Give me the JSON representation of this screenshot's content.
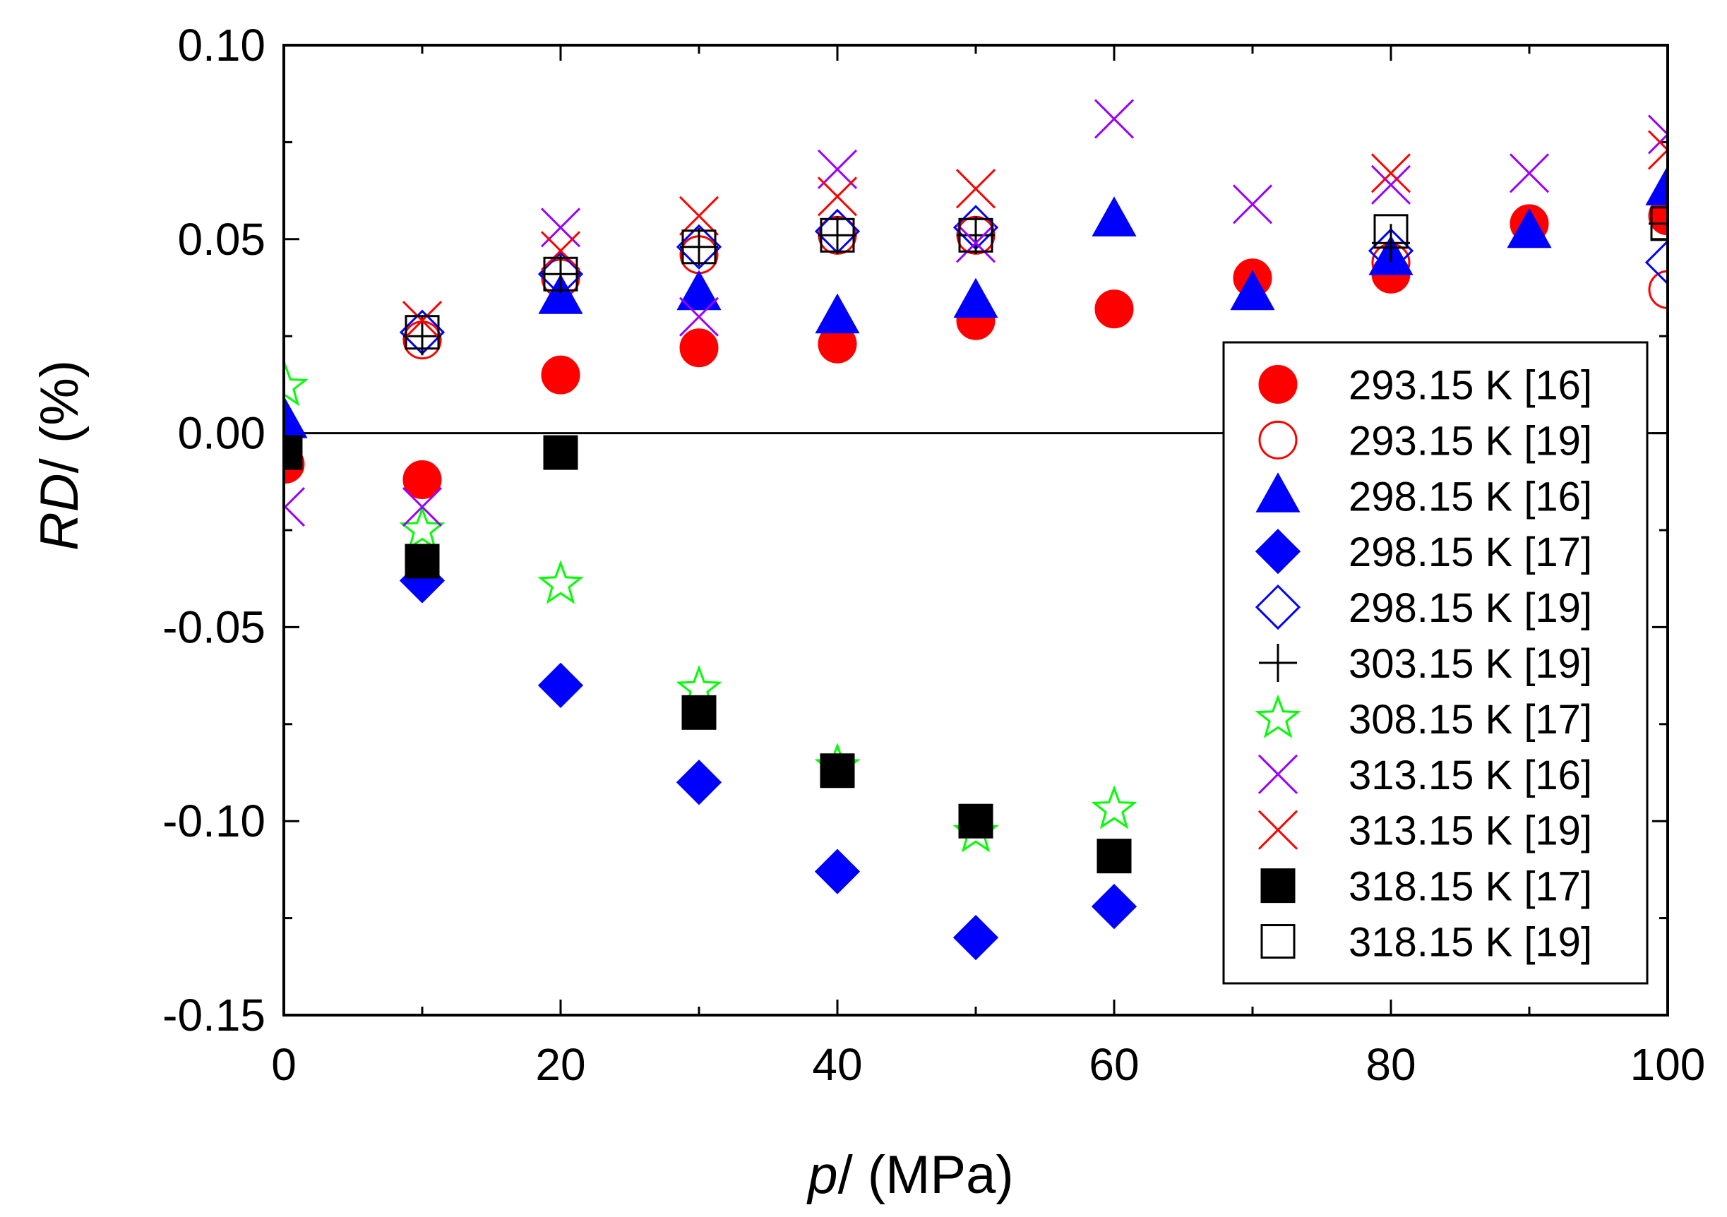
{
  "chart_data": {
    "type": "scatter",
    "title": "",
    "xlabel_italic": "p",
    "xlabel_rest": "/ (MPa)",
    "ylabel_italic": "RD",
    "ylabel_rest": "/ (%)",
    "xlim": [
      0,
      100
    ],
    "ylim": [
      -0.15,
      0.1
    ],
    "xticks": [
      0,
      20,
      40,
      60,
      80,
      100
    ],
    "xtick_labels": [
      "0",
      "20",
      "40",
      "60",
      "80",
      "100"
    ],
    "yticks": [
      -0.15,
      -0.1,
      -0.05,
      0.0,
      0.05,
      0.1
    ],
    "ytick_labels": [
      "-0.15",
      "-0.10",
      "-0.05",
      "0.00",
      "0.05",
      "0.10"
    ],
    "grid": false,
    "zero_line": true,
    "legend_position": "right",
    "series": [
      {
        "name": "293.15 K [16]",
        "marker": "circle",
        "filled": true,
        "color": "#ff0000",
        "x": [
          0.1,
          10,
          20,
          30,
          40,
          50,
          60,
          70,
          80,
          90,
          100
        ],
        "y": [
          -0.008,
          -0.012,
          0.015,
          0.022,
          0.023,
          0.029,
          0.032,
          0.04,
          0.041,
          0.054,
          0.056
        ]
      },
      {
        "name": "293.15 K [19]",
        "marker": "circle",
        "filled": false,
        "color": "#ff0000",
        "x": [
          10,
          20,
          30,
          40,
          50,
          80,
          100
        ],
        "y": [
          0.024,
          0.04,
          0.046,
          0.051,
          0.051,
          0.044,
          0.037
        ]
      },
      {
        "name": "298.15 K [16]",
        "marker": "triangle",
        "filled": true,
        "color": "#0000ff",
        "x": [
          0.1,
          20,
          30,
          40,
          50,
          60,
          70,
          80,
          90,
          100
        ],
        "y": [
          0.003,
          0.035,
          0.036,
          0.03,
          0.034,
          0.055,
          0.036,
          0.045,
          0.052,
          0.063
        ]
      },
      {
        "name": "298.15 K [17]",
        "marker": "diamond",
        "filled": true,
        "color": "#0000ff",
        "x": [
          10,
          20,
          30,
          40,
          50,
          60
        ],
        "y": [
          -0.038,
          -0.065,
          -0.09,
          -0.113,
          -0.13,
          -0.122
        ]
      },
      {
        "name": "298.15 K [19]",
        "marker": "diamond",
        "filled": false,
        "color": "#0000ff",
        "x": [
          10,
          20,
          30,
          40,
          50,
          80,
          100
        ],
        "y": [
          0.026,
          0.041,
          0.048,
          0.052,
          0.053,
          0.047,
          0.044
        ]
      },
      {
        "name": "303.15 K [19]",
        "marker": "plus",
        "filled": false,
        "color": "#000000",
        "x": [
          10,
          20,
          30,
          40,
          50,
          80,
          100
        ],
        "y": [
          0.025,
          0.041,
          0.048,
          0.051,
          0.051,
          0.049,
          0.054
        ]
      },
      {
        "name": "308.15 K [17]",
        "marker": "star",
        "filled": false,
        "color": "#00ff00",
        "x": [
          0.1,
          10,
          20,
          30,
          40,
          50,
          60
        ],
        "y": [
          0.012,
          -0.025,
          -0.039,
          -0.066,
          -0.086,
          -0.103,
          -0.097
        ]
      },
      {
        "name": "313.15 K [16]",
        "marker": "x",
        "filled": false,
        "color": "#9900ff",
        "x": [
          0.1,
          10,
          20,
          30,
          40,
          50,
          60,
          70,
          80,
          90,
          100
        ],
        "y": [
          -0.019,
          -0.019,
          0.053,
          0.03,
          0.068,
          0.049,
          0.081,
          0.059,
          0.064,
          0.067,
          0.077
        ]
      },
      {
        "name": "313.15 K [19]",
        "marker": "x",
        "filled": false,
        "color": "#ff0000",
        "x": [
          10,
          20,
          30,
          40,
          50,
          80,
          100
        ],
        "y": [
          0.029,
          0.047,
          0.056,
          0.061,
          0.063,
          0.067,
          0.073
        ]
      },
      {
        "name": "318.15 K [17]",
        "marker": "square",
        "filled": true,
        "color": "#000000",
        "x": [
          0.1,
          10,
          20,
          30,
          40,
          50,
          60
        ],
        "y": [
          -0.005,
          -0.033,
          -0.005,
          -0.072,
          -0.087,
          -0.1,
          -0.109
        ]
      },
      {
        "name": "318.15 K [19]",
        "marker": "square",
        "filled": false,
        "color": "#000000",
        "x": [
          10,
          20,
          30,
          40,
          50,
          80,
          100
        ],
        "y": [
          0.026,
          0.041,
          0.048,
          0.051,
          0.051,
          0.052,
          0.054
        ]
      }
    ]
  }
}
